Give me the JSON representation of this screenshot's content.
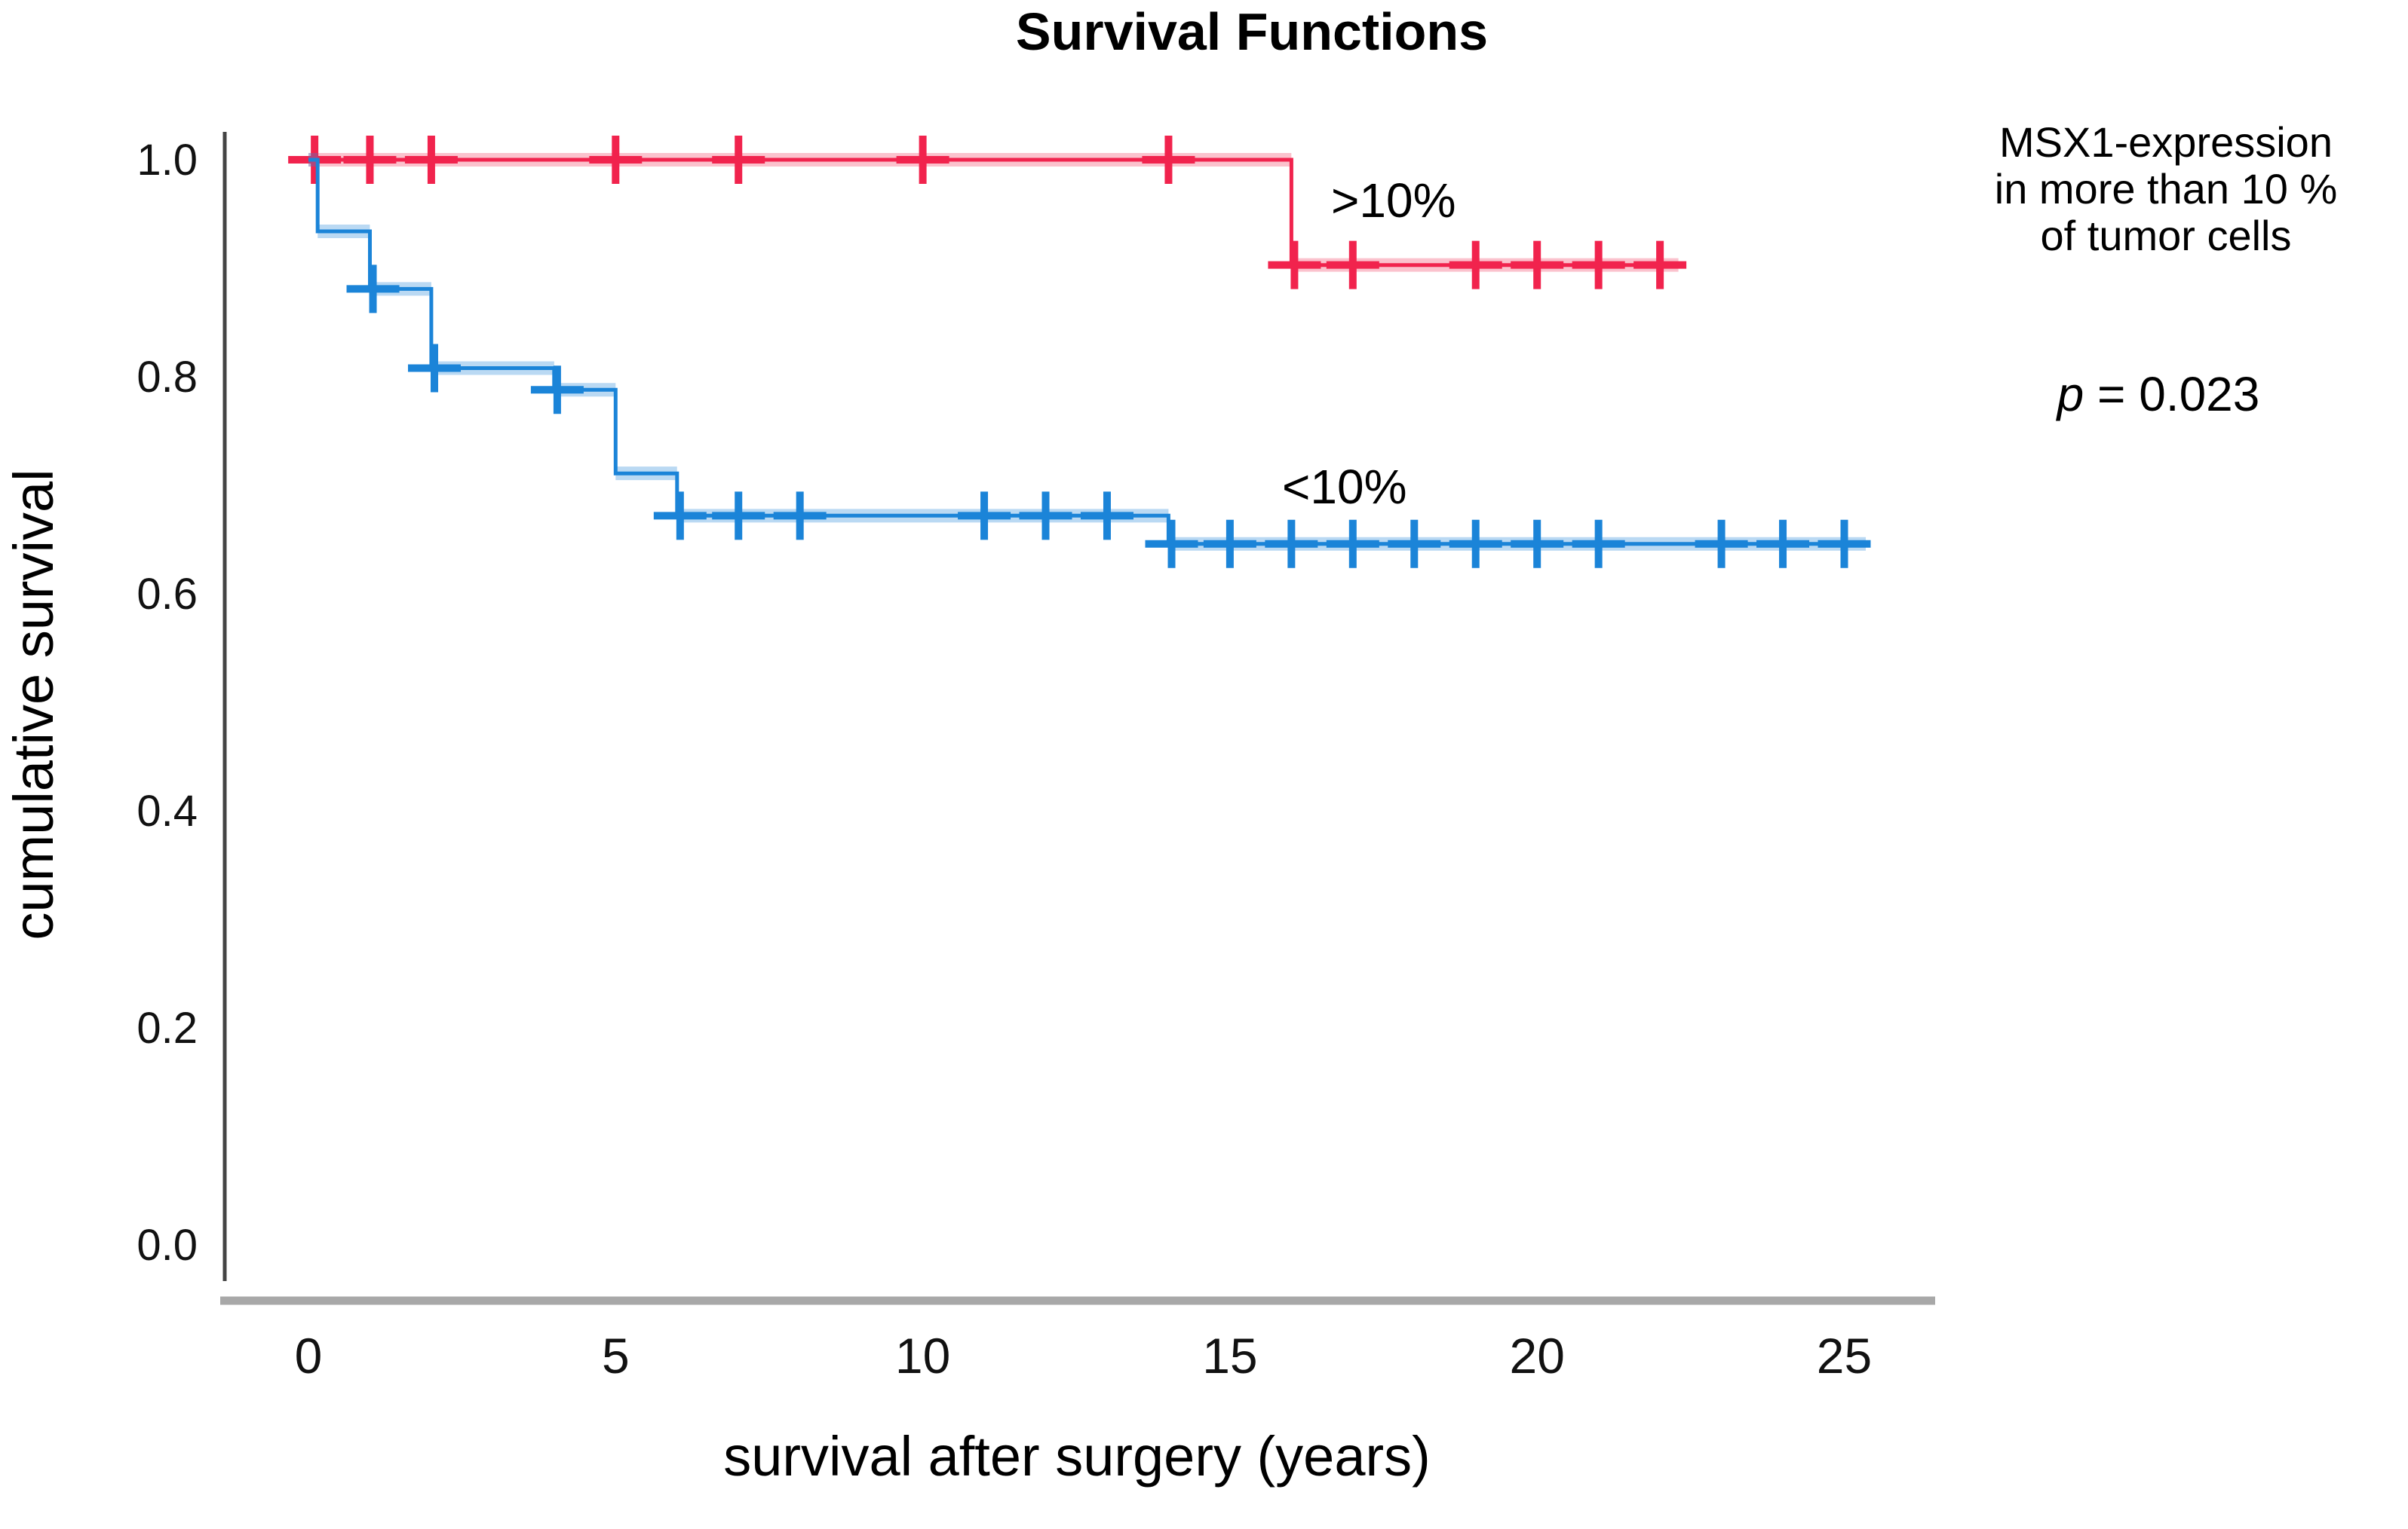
{
  "title": "Survival Functions",
  "axes": {
    "x_label": "survival after surgery (years)",
    "y_label": "cumulative survival",
    "x_ticks": [
      0,
      5,
      10,
      15,
      20,
      25
    ],
    "y_ticks": [
      "0.0",
      "0.2",
      "0.4",
      "0.6",
      "0.8",
      "1.0"
    ],
    "x_range": [
      0,
      25
    ],
    "y_range": [
      0.0,
      1.0
    ]
  },
  "annotations": {
    "red_curve_label": ">10%",
    "blue_curve_label": "<10%",
    "legend_lines": [
      "MSX1-expression",
      "in more than 10 %",
      "of tumor cells"
    ],
    "p_symbol": "p",
    "p_rest": " = 0.023"
  },
  "colors": {
    "red_main": "#f1234d",
    "red_band": "rgba(241,35,77,0.28)",
    "blue_main": "#1b84d8",
    "blue_band": "rgba(47,141,219,0.33)",
    "left_spine": "#444444",
    "bottom_spine": "#a8a8a8"
  },
  "chart_data": {
    "type": "line",
    "subtype": "kaplan-meier-step",
    "title": "Survival Functions",
    "xlabel": "survival after surgery (years)",
    "ylabel": "cumulative survival",
    "xlim": [
      0,
      25
    ],
    "ylim": [
      0.0,
      1.0
    ],
    "grid": false,
    "legend_position": "right-outside",
    "series": [
      {
        "name": "MSX1 >10%",
        "label": ">10%",
        "color_key": "red",
        "steps": [
          [
            0,
            1.0
          ],
          [
            16,
            1.0
          ],
          [
            16,
            0.903
          ],
          [
            22.3,
            0.903
          ]
        ],
        "censors": [
          [
            0.1,
            1.0
          ],
          [
            1,
            1.0
          ],
          [
            2,
            1.0
          ],
          [
            5,
            1.0
          ],
          [
            7,
            1.0
          ],
          [
            10,
            1.0
          ],
          [
            14,
            1.0
          ],
          [
            16.05,
            0.903
          ],
          [
            17,
            0.903
          ],
          [
            19,
            0.903
          ],
          [
            20,
            0.903
          ],
          [
            21,
            0.903
          ],
          [
            22,
            0.903
          ]
        ]
      },
      {
        "name": "MSX1 <10%",
        "label": "<10%",
        "color_key": "blue",
        "steps": [
          [
            0,
            1.0
          ],
          [
            0.15,
            1.0
          ],
          [
            0.15,
            0.934
          ],
          [
            1,
            0.934
          ],
          [
            1,
            0.881
          ],
          [
            2,
            0.881
          ],
          [
            2,
            0.808
          ],
          [
            4,
            0.808
          ],
          [
            4,
            0.788
          ],
          [
            5,
            0.788
          ],
          [
            5,
            0.711
          ],
          [
            6,
            0.711
          ],
          [
            6,
            0.672
          ],
          [
            14,
            0.672
          ],
          [
            14,
            0.646
          ],
          [
            25.35,
            0.646
          ]
        ],
        "censors": [
          [
            1.05,
            0.881
          ],
          [
            2.05,
            0.808
          ],
          [
            4.05,
            0.788
          ],
          [
            6.05,
            0.672
          ],
          [
            7,
            0.672
          ],
          [
            8,
            0.672
          ],
          [
            11,
            0.672
          ],
          [
            12,
            0.672
          ],
          [
            13,
            0.672
          ],
          [
            14.05,
            0.646
          ],
          [
            15,
            0.646
          ],
          [
            16,
            0.646
          ],
          [
            17,
            0.646
          ],
          [
            18,
            0.646
          ],
          [
            19,
            0.646
          ],
          [
            20,
            0.646
          ],
          [
            21,
            0.646
          ],
          [
            23,
            0.646
          ],
          [
            24,
            0.646
          ],
          [
            25,
            0.646
          ]
        ]
      }
    ],
    "p_value": "p = 0.023",
    "annotation": "MSX1-expression in more than 10 % of tumor cells"
  }
}
